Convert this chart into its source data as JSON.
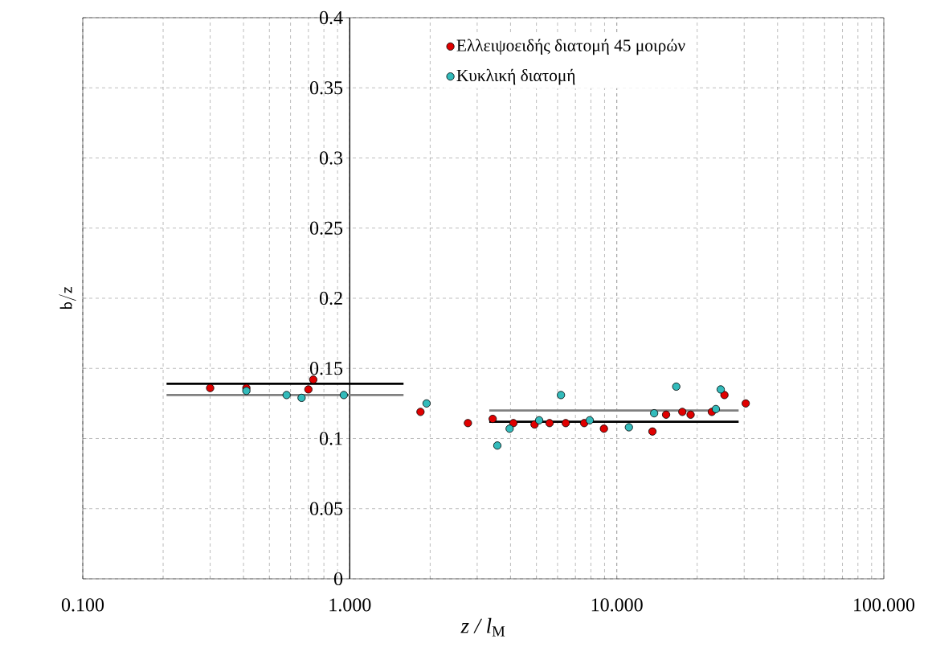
{
  "chart_data": {
    "type": "scatter",
    "xlabel": "*z / l*$_{M}$",
    "ref_lines": [
      {
        "axis": "x",
        "value": 1,
        "color": "#000000"
      }
    ],
    "ylabel": "b/z",
    "log": "x",
    "grid": true,
    "legend": "top right",
    "xlim": [
      0.1,
      100
    ],
    "ylim": [
      0,
      0.4
    ],
    "xticks": [
      {
        "value": 0.1,
        "label": "0.100"
      },
      {
        "value": 1,
        "label": "1.000"
      },
      {
        "value": 10,
        "label": "10.000"
      },
      {
        "value": 100,
        "label": "100.000"
      }
    ],
    "yticks": [
      0,
      0.05,
      0.1,
      0.15,
      0.2,
      0.25,
      0.3,
      0.35,
      0.4
    ],
    "series": [
      {
        "name": "Ελλειψοειδής διατομή 45 μοιρών",
        "marker": "circle",
        "color": "#e00000",
        "x": [
          0.3,
          0.41,
          0.7,
          0.73,
          1.84,
          2.77,
          3.43,
          4.1,
          4.92,
          5.6,
          6.44,
          7.55,
          8.95,
          13.6,
          15.3,
          17.6,
          18.9,
          22.7,
          25.3,
          30.4
        ],
        "values": [
          0.136,
          0.136,
          0.135,
          0.142,
          0.119,
          0.111,
          0.114,
          0.111,
          0.11,
          0.111,
          0.111,
          0.111,
          0.107,
          0.105,
          0.117,
          0.119,
          0.117,
          0.119,
          0.131,
          0.125
        ]
      },
      {
        "name": "Κυκλική διατομή",
        "marker": "circle",
        "color": "#33bbbb",
        "x": [
          0.41,
          0.58,
          0.66,
          0.95,
          1.94,
          3.57,
          3.97,
          5.12,
          6.18,
          7.92,
          11.1,
          13.8,
          16.7,
          23.5,
          24.5
        ],
        "values": [
          0.134,
          0.131,
          0.129,
          0.131,
          0.125,
          0.095,
          0.107,
          0.113,
          0.131,
          0.113,
          0.108,
          0.118,
          0.137,
          0.121,
          0.135
        ]
      },
      {
        "type": "line",
        "marker": "none",
        "color": "#000000",
        "x": [
          0.206,
          1.59
        ],
        "values": [
          0.139,
          0.139
        ]
      },
      {
        "type": "line",
        "marker": "none",
        "color": "#808080",
        "x": [
          0.206,
          1.59
        ],
        "values": [
          0.131,
          0.131
        ]
      },
      {
        "type": "line",
        "marker": "none",
        "color": "#808080",
        "x": [
          3.33,
          28.6
        ],
        "values": [
          0.12,
          0.12
        ]
      },
      {
        "type": "line",
        "marker": "none",
        "color": "#000000",
        "x": [
          3.33,
          28.6
        ],
        "values": [
          0.112,
          0.112
        ]
      }
    ]
  }
}
